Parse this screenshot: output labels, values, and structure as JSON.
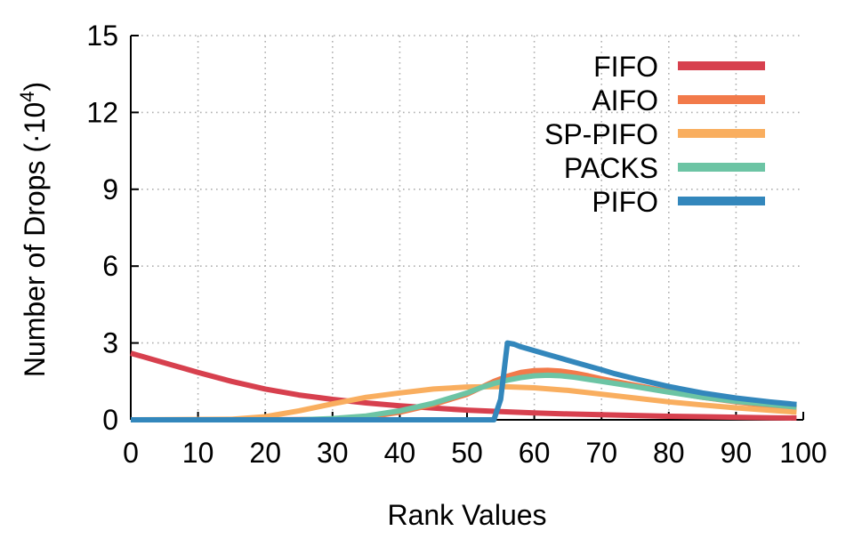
{
  "chart_data": {
    "type": "line",
    "title": "",
    "xlabel": "Rank Values",
    "ylabel_main": "Number of Drops (",
    "ylabel_mult": "·10",
    "ylabel_exp": "4",
    "ylabel_close": ")",
    "xlim": [
      0,
      100
    ],
    "ylim": [
      0,
      15
    ],
    "xticks": [
      0,
      10,
      20,
      30,
      40,
      50,
      60,
      70,
      80,
      90,
      100
    ],
    "yticks": [
      0,
      3,
      6,
      9,
      12,
      15
    ],
    "xtick_labels": [
      "0",
      "10",
      "20",
      "30",
      "40",
      "50",
      "60",
      "70",
      "80",
      "90",
      "100"
    ],
    "ytick_labels": [
      "0",
      "3",
      "6",
      "9",
      "12",
      "15"
    ],
    "grid": true,
    "legend_position": "top-right",
    "series": [
      {
        "name": "FIFO",
        "color": "#d7404e",
        "x": [
          0,
          2,
          4,
          6,
          8,
          10,
          15,
          20,
          25,
          30,
          35,
          40,
          45,
          50,
          55,
          60,
          65,
          70,
          75,
          80,
          85,
          90,
          95,
          99
        ],
        "y": [
          2.6,
          2.45,
          2.3,
          2.15,
          2.0,
          1.85,
          1.5,
          1.2,
          0.97,
          0.8,
          0.66,
          0.55,
          0.46,
          0.38,
          0.32,
          0.27,
          0.23,
          0.2,
          0.17,
          0.14,
          0.12,
          0.1,
          0.08,
          0.07
        ]
      },
      {
        "name": "AIFO",
        "color": "#f27a4a",
        "x": [
          0,
          20,
          30,
          35,
          40,
          45,
          50,
          52,
          54,
          56,
          58,
          60,
          62,
          64,
          66,
          68,
          70,
          75,
          80,
          85,
          90,
          95,
          99
        ],
        "y": [
          0.0,
          0.0,
          0.02,
          0.1,
          0.3,
          0.6,
          1.0,
          1.25,
          1.5,
          1.7,
          1.85,
          1.92,
          1.93,
          1.9,
          1.82,
          1.72,
          1.6,
          1.35,
          1.1,
          0.88,
          0.7,
          0.55,
          0.45
        ]
      },
      {
        "name": "SP-PIFO",
        "color": "#f9ae5f",
        "x": [
          0,
          15,
          20,
          25,
          30,
          35,
          40,
          45,
          50,
          55,
          60,
          65,
          70,
          75,
          80,
          85,
          90,
          95,
          99
        ],
        "y": [
          0.0,
          0.02,
          0.12,
          0.35,
          0.62,
          0.88,
          1.05,
          1.2,
          1.28,
          1.3,
          1.25,
          1.15,
          1.0,
          0.85,
          0.7,
          0.58,
          0.47,
          0.37,
          0.3
        ]
      },
      {
        "name": "PACKS",
        "color": "#6cc4a4",
        "x": [
          0,
          25,
          30,
          35,
          40,
          45,
          50,
          52,
          54,
          56,
          58,
          60,
          62,
          64,
          66,
          68,
          70,
          75,
          80,
          85,
          90,
          95,
          99
        ],
        "y": [
          0.0,
          0.0,
          0.05,
          0.15,
          0.35,
          0.65,
          1.05,
          1.25,
          1.42,
          1.55,
          1.65,
          1.72,
          1.74,
          1.72,
          1.66,
          1.58,
          1.5,
          1.3,
          1.08,
          0.88,
          0.72,
          0.6,
          0.5
        ]
      },
      {
        "name": "PIFO",
        "color": "#3387bc",
        "x": [
          0,
          54,
          55,
          56,
          57,
          58,
          60,
          62,
          64,
          66,
          68,
          70,
          72,
          75,
          80,
          85,
          90,
          95,
          99
        ],
        "y": [
          0.0,
          0.0,
          0.8,
          3.0,
          2.95,
          2.85,
          2.7,
          2.55,
          2.4,
          2.25,
          2.1,
          1.95,
          1.8,
          1.6,
          1.3,
          1.05,
          0.85,
          0.7,
          0.6
        ]
      }
    ]
  }
}
